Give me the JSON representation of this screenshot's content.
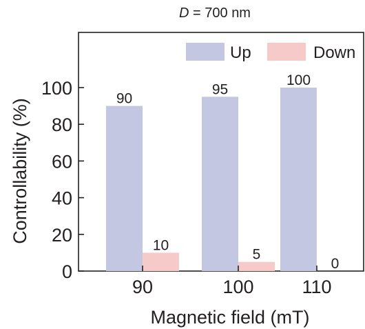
{
  "chart_data": {
    "type": "bar",
    "title": "D = 700 nm",
    "title_italic_part": "D",
    "title_rest": " = 700 nm",
    "xlabel": "Magnetic field (mT)",
    "ylabel": "Controllability (%)",
    "categories": [
      "90",
      "100",
      "110"
    ],
    "series": [
      {
        "name": "Up",
        "values": [
          90,
          95,
          100
        ],
        "labels": [
          "90",
          "95",
          "100"
        ],
        "color": "#c4c7e2"
      },
      {
        "name": "Down",
        "values": [
          10,
          5,
          0
        ],
        "labels": [
          "10",
          "5",
          "0"
        ],
        "color": "#f7caca"
      }
    ],
    "ylim": [
      0,
      100
    ],
    "yticks": [
      0,
      20,
      40,
      60,
      80,
      100
    ],
    "grid": false,
    "legend_position": "top-right"
  }
}
